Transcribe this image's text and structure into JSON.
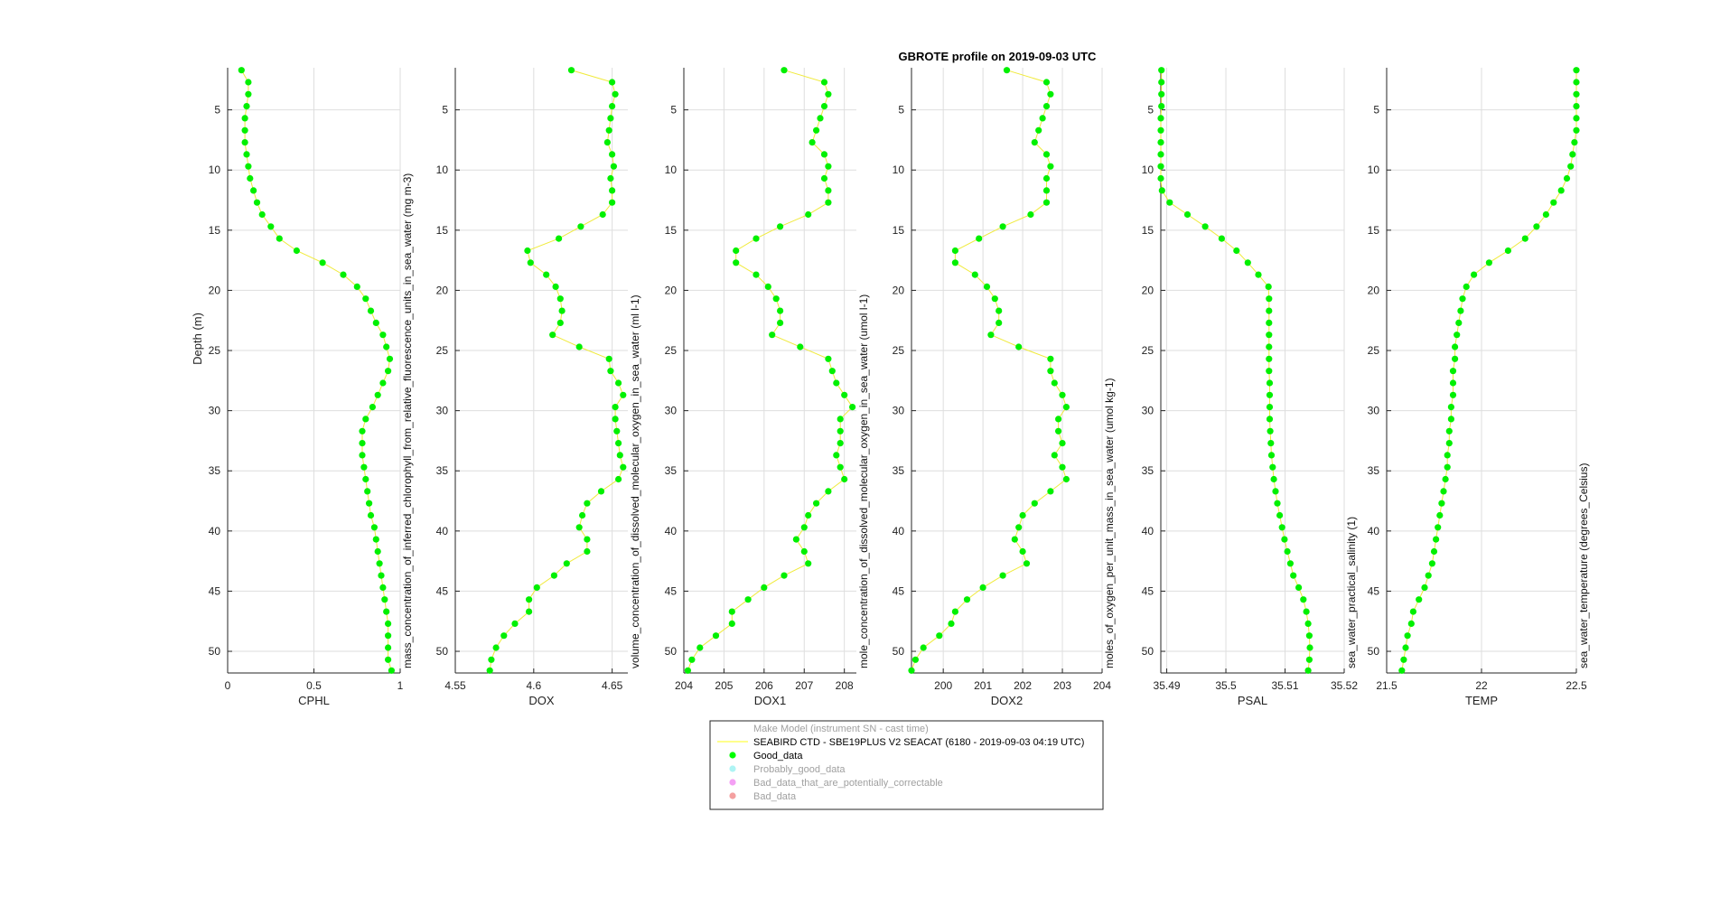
{
  "title": "GBROTE profile on 2019-09-03 UTC",
  "chart_data": [
    {
      "type": "scatter",
      "xlabel": "CPHL",
      "side_label": "mass_concentration_of_inferred_chlorophyll_from_relative_fluorescence_units_in_sea_water (mg m-3)",
      "ylabel": "Depth (m)",
      "xlim": [
        0,
        1
      ],
      "xticks": [
        0,
        0.5,
        1
      ],
      "xtick_labels": [
        "0",
        "0.5",
        "1"
      ],
      "ylim": [
        1.5,
        51.8
      ],
      "yticks": [
        5,
        10,
        15,
        20,
        25,
        30,
        35,
        40,
        45,
        50
      ],
      "grid": true,
      "x": [
        0.08,
        0.12,
        0.12,
        0.11,
        0.1,
        0.1,
        0.1,
        0.11,
        0.12,
        0.13,
        0.15,
        0.17,
        0.2,
        0.25,
        0.3,
        0.4,
        0.55,
        0.67,
        0.75,
        0.8,
        0.83,
        0.86,
        0.9,
        0.92,
        0.94,
        0.93,
        0.9,
        0.87,
        0.84,
        0.8,
        0.78,
        0.78,
        0.78,
        0.79,
        0.8,
        0.81,
        0.82,
        0.83,
        0.85,
        0.86,
        0.87,
        0.88,
        0.89,
        0.9,
        0.91,
        0.92,
        0.93,
        0.93,
        0.93,
        0.93,
        0.95
      ],
      "y": [
        1.7,
        2.7,
        3.7,
        4.7,
        5.7,
        6.7,
        7.7,
        8.7,
        9.7,
        10.7,
        11.7,
        12.7,
        13.7,
        14.7,
        15.7,
        16.7,
        17.7,
        18.7,
        19.7,
        20.7,
        21.7,
        22.7,
        23.7,
        24.7,
        25.7,
        26.7,
        27.7,
        28.7,
        29.7,
        30.7,
        31.7,
        32.7,
        33.7,
        34.7,
        35.7,
        36.7,
        37.7,
        38.7,
        39.7,
        40.7,
        41.7,
        42.7,
        43.7,
        44.7,
        45.7,
        46.7,
        47.7,
        48.7,
        49.7,
        50.7,
        51.6
      ]
    },
    {
      "type": "scatter",
      "xlabel": "DOX",
      "side_label": "volume_concentration_of_dissolved_molecular_oxygen_in_sea_water (ml l-1)",
      "xlim": [
        4.55,
        4.66
      ],
      "xticks": [
        4.55,
        4.6,
        4.65
      ],
      "xtick_labels": [
        "4.55",
        "4.6",
        "4.65"
      ],
      "ylim": [
        1.5,
        51.8
      ],
      "yticks": [
        5,
        10,
        15,
        20,
        25,
        30,
        35,
        40,
        45,
        50
      ],
      "grid": true,
      "x": [
        4.624,
        4.65,
        4.652,
        4.65,
        4.649,
        4.648,
        4.647,
        4.65,
        4.651,
        4.649,
        4.65,
        4.65,
        4.644,
        4.63,
        4.616,
        4.596,
        4.598,
        4.608,
        4.614,
        4.617,
        4.618,
        4.617,
        4.612,
        4.629,
        4.648,
        4.649,
        4.654,
        4.657,
        4.652,
        4.652,
        4.653,
        4.654,
        4.655,
        4.657,
        4.654,
        4.643,
        4.634,
        4.631,
        4.629,
        4.634,
        4.634,
        4.621,
        4.613,
        4.602,
        4.597,
        4.597,
        4.588,
        4.581,
        4.576,
        4.573,
        4.572
      ],
      "y": [
        1.7,
        2.7,
        3.7,
        4.7,
        5.7,
        6.7,
        7.7,
        8.7,
        9.7,
        10.7,
        11.7,
        12.7,
        13.7,
        14.7,
        15.7,
        16.7,
        17.7,
        18.7,
        19.7,
        20.7,
        21.7,
        22.7,
        23.7,
        24.7,
        25.7,
        26.7,
        27.7,
        28.7,
        29.7,
        30.7,
        31.7,
        32.7,
        33.7,
        34.7,
        35.7,
        36.7,
        37.7,
        38.7,
        39.7,
        40.7,
        41.7,
        42.7,
        43.7,
        44.7,
        45.7,
        46.7,
        47.7,
        48.7,
        49.7,
        50.7,
        51.6
      ]
    },
    {
      "type": "scatter",
      "xlabel": "DOX1",
      "side_label": "mole_concentration_of_dissolved_molecular_oxygen_in_sea_water (umol l-1)",
      "xlim": [
        204,
        208.3
      ],
      "xticks": [
        204,
        205,
        206,
        207,
        208
      ],
      "xtick_labels": [
        "204",
        "205",
        "206",
        "207",
        "208"
      ],
      "ylim": [
        1.5,
        51.8
      ],
      "yticks": [
        5,
        10,
        15,
        20,
        25,
        30,
        35,
        40,
        45,
        50
      ],
      "grid": true,
      "x": [
        206.5,
        207.5,
        207.6,
        207.5,
        207.4,
        207.3,
        207.2,
        207.5,
        207.6,
        207.5,
        207.6,
        207.6,
        207.1,
        206.4,
        205.8,
        205.3,
        205.3,
        205.8,
        206.1,
        206.3,
        206.4,
        206.4,
        206.2,
        206.9,
        207.6,
        207.7,
        207.8,
        208.0,
        208.2,
        207.9,
        207.9,
        207.9,
        207.8,
        207.9,
        208.0,
        207.6,
        207.3,
        207.1,
        207.0,
        206.8,
        207.0,
        207.1,
        206.5,
        206.0,
        205.6,
        205.2,
        205.2,
        204.8,
        204.4,
        204.2,
        204.1
      ],
      "y": [
        1.7,
        2.7,
        3.7,
        4.7,
        5.7,
        6.7,
        7.7,
        8.7,
        9.7,
        10.7,
        11.7,
        12.7,
        13.7,
        14.7,
        15.7,
        16.7,
        17.7,
        18.7,
        19.7,
        20.7,
        21.7,
        22.7,
        23.7,
        24.7,
        25.7,
        26.7,
        27.7,
        28.7,
        29.7,
        30.7,
        31.7,
        32.7,
        33.7,
        34.7,
        35.7,
        36.7,
        37.7,
        38.7,
        39.7,
        40.7,
        41.7,
        42.7,
        43.7,
        44.7,
        45.7,
        46.7,
        47.7,
        48.7,
        49.7,
        50.7,
        51.6
      ]
    },
    {
      "type": "scatter",
      "xlabel": "DOX2",
      "side_label": "moles_of_oxygen_per_unit_mass_in_sea_water (umol kg-1)",
      "xlim": [
        199.2,
        204
      ],
      "xticks": [
        200,
        201,
        202,
        203,
        204
      ],
      "xtick_labels": [
        "200",
        "201",
        "202",
        "203",
        "204"
      ],
      "ylim": [
        1.5,
        51.8
      ],
      "yticks": [
        5,
        10,
        15,
        20,
        25,
        30,
        35,
        40,
        45,
        50
      ],
      "grid": true,
      "x": [
        201.6,
        202.6,
        202.7,
        202.6,
        202.5,
        202.4,
        202.3,
        202.6,
        202.7,
        202.6,
        202.6,
        202.6,
        202.2,
        201.5,
        200.9,
        200.3,
        200.3,
        200.8,
        201.1,
        201.3,
        201.4,
        201.4,
        201.2,
        201.9,
        202.7,
        202.7,
        202.8,
        203.0,
        203.1,
        202.9,
        202.9,
        203.0,
        202.8,
        203.0,
        203.1,
        202.7,
        202.3,
        202.0,
        201.9,
        201.8,
        202.0,
        202.1,
        201.5,
        201.0,
        200.6,
        200.3,
        200.2,
        199.9,
        199.5,
        199.3,
        199.2
      ],
      "y": [
        1.7,
        2.7,
        3.7,
        4.7,
        5.7,
        6.7,
        7.7,
        8.7,
        9.7,
        10.7,
        11.7,
        12.7,
        13.7,
        14.7,
        15.7,
        16.7,
        17.7,
        18.7,
        19.7,
        20.7,
        21.7,
        22.7,
        23.7,
        24.7,
        25.7,
        26.7,
        27.7,
        28.7,
        29.7,
        30.7,
        31.7,
        32.7,
        33.7,
        34.7,
        35.7,
        36.7,
        37.7,
        38.7,
        39.7,
        40.7,
        41.7,
        42.7,
        43.7,
        44.7,
        45.7,
        46.7,
        47.7,
        48.7,
        49.7,
        50.7,
        51.6
      ]
    },
    {
      "type": "scatter",
      "xlabel": "PSAL",
      "side_label": "sea_water_practical_salinity (1)",
      "xlim": [
        35.489,
        35.52
      ],
      "xticks": [
        35.49,
        35.5,
        35.51,
        35.52
      ],
      "xtick_labels": [
        "35.49",
        "35.5",
        "35.51",
        "35.52"
      ],
      "ylim": [
        1.5,
        51.8
      ],
      "yticks": [
        5,
        10,
        15,
        20,
        25,
        30,
        35,
        40,
        45,
        50
      ],
      "grid": true,
      "x": [
        35.4891,
        35.4891,
        35.4891,
        35.4891,
        35.489,
        35.489,
        35.489,
        35.489,
        35.489,
        35.489,
        35.4892,
        35.4905,
        35.4935,
        35.4965,
        35.4993,
        35.5018,
        35.5037,
        35.5055,
        35.5072,
        35.5073,
        35.5073,
        35.5073,
        35.5073,
        35.5073,
        35.5073,
        35.5073,
        35.5074,
        35.5074,
        35.5074,
        35.5074,
        35.5075,
        35.5076,
        35.5077,
        35.5079,
        35.5081,
        35.5084,
        35.5087,
        35.5091,
        35.5095,
        35.5099,
        35.5104,
        35.5109,
        35.5114,
        35.5123,
        35.5131,
        35.5136,
        35.5139,
        35.5141,
        35.5142,
        35.5141,
        35.5139
      ],
      "y": [
        1.7,
        2.7,
        3.7,
        4.7,
        5.7,
        6.7,
        7.7,
        8.7,
        9.7,
        10.7,
        11.7,
        12.7,
        13.7,
        14.7,
        15.7,
        16.7,
        17.7,
        18.7,
        19.7,
        20.7,
        21.7,
        22.7,
        23.7,
        24.7,
        25.7,
        26.7,
        27.7,
        28.7,
        29.7,
        30.7,
        31.7,
        32.7,
        33.7,
        34.7,
        35.7,
        36.7,
        37.7,
        38.7,
        39.7,
        40.7,
        41.7,
        42.7,
        43.7,
        44.7,
        45.7,
        46.7,
        47.7,
        48.7,
        49.7,
        50.7,
        51.6
      ]
    },
    {
      "type": "scatter",
      "xlabel": "TEMP",
      "side_label": "sea_water_temperature (degrees_Celsius)",
      "xlim": [
        21.5,
        22.5
      ],
      "xticks": [
        21.5,
        22,
        22.5
      ],
      "xtick_labels": [
        "21.5",
        "22",
        "22.5"
      ],
      "ylim": [
        1.5,
        51.8
      ],
      "yticks": [
        5,
        10,
        15,
        20,
        25,
        30,
        35,
        40,
        45,
        50
      ],
      "grid": true,
      "x": [
        22.5,
        22.5,
        22.5,
        22.5,
        22.5,
        22.5,
        22.49,
        22.48,
        22.47,
        22.45,
        22.42,
        22.38,
        22.34,
        22.29,
        22.23,
        22.14,
        22.04,
        21.96,
        21.92,
        21.9,
        21.89,
        21.88,
        21.87,
        21.86,
        21.86,
        21.85,
        21.85,
        21.85,
        21.84,
        21.84,
        21.83,
        21.83,
        21.82,
        21.82,
        21.81,
        21.8,
        21.79,
        21.78,
        21.77,
        21.76,
        21.75,
        21.74,
        21.72,
        21.7,
        21.67,
        21.64,
        21.63,
        21.61,
        21.6,
        21.59,
        21.58
      ],
      "y": [
        1.7,
        2.7,
        3.7,
        4.7,
        5.7,
        6.7,
        7.7,
        8.7,
        9.7,
        10.7,
        11.7,
        12.7,
        13.7,
        14.7,
        15.7,
        16.7,
        17.7,
        18.7,
        19.7,
        20.7,
        21.7,
        22.7,
        23.7,
        24.7,
        25.7,
        26.7,
        27.7,
        28.7,
        29.7,
        30.7,
        31.7,
        32.7,
        33.7,
        34.7,
        35.7,
        36.7,
        37.7,
        38.7,
        39.7,
        40.7,
        41.7,
        42.7,
        43.7,
        44.7,
        45.7,
        46.7,
        47.7,
        48.7,
        49.7,
        50.7,
        51.6
      ]
    }
  ],
  "legend": {
    "placement": "bottom-center",
    "header": "Make Model (instrument SN - cast time)",
    "entries": [
      {
        "label": "SEABIRD CTD - SBE19PLUS V2 SEACAT (6180 - 2019-09-03 04:19 UTC)",
        "kind": "line",
        "color": "#ffff66",
        "active": true
      },
      {
        "label": "Good_data",
        "kind": "marker",
        "color": "#00ff00",
        "active": true
      },
      {
        "label": "Probably_good_data",
        "kind": "marker",
        "color": "#aef4f4",
        "active": false
      },
      {
        "label": "Bad_data_that_are_potentially_correctable",
        "kind": "marker",
        "color": "#f4a0f4",
        "active": false
      },
      {
        "label": "Bad_data",
        "kind": "marker",
        "color": "#f4a0a0",
        "active": false
      }
    ]
  },
  "colors": {
    "line": "#f0ea3a",
    "marker": "#00f000",
    "grid": "#dedede",
    "inactive_text": "#a0a0a0"
  }
}
